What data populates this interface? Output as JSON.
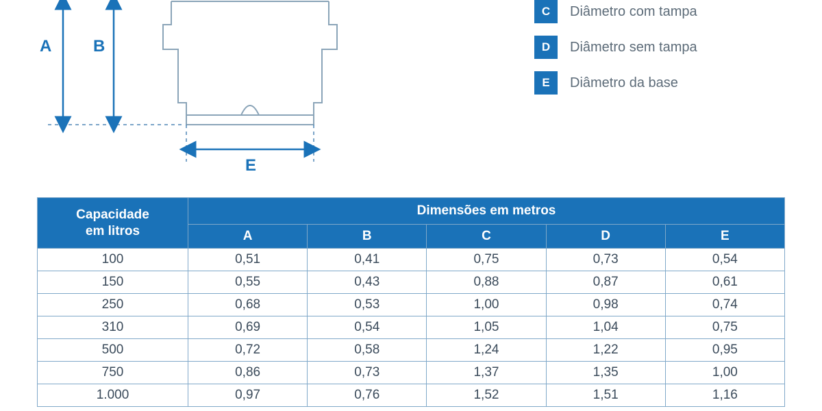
{
  "colors": {
    "header_bg": "#1a72b8",
    "border": "#7fa8c9",
    "legend_text": "#5c6b78",
    "dim_label": "#1a72b8",
    "arrow": "#1a72b8",
    "tank_line": "#8aa4b8",
    "dash": "#4e86b5"
  },
  "legend": [
    {
      "letter": "C",
      "label": "Diâmetro com tampa"
    },
    {
      "letter": "D",
      "label": "Diâmetro sem tampa"
    },
    {
      "letter": "E",
      "label": "Diâmetro da base"
    }
  ],
  "diagram_labels": {
    "A": "A",
    "B": "B",
    "E": "E"
  },
  "table": {
    "header_capacity_line1": "Capacidade",
    "header_capacity_line2": "em litros",
    "header_dims": "Dimensões em metros",
    "sub_headers": [
      "A",
      "B",
      "C",
      "D",
      "E"
    ],
    "rows": [
      {
        "cap": "100",
        "v": [
          "0,51",
          "0,41",
          "0,75",
          "0,73",
          "0,54"
        ]
      },
      {
        "cap": "150",
        "v": [
          "0,55",
          "0,43",
          "0,88",
          "0,87",
          "0,61"
        ]
      },
      {
        "cap": "250",
        "v": [
          "0,68",
          "0,53",
          "1,00",
          "0,98",
          "0,74"
        ]
      },
      {
        "cap": "310",
        "v": [
          "0,69",
          "0,54",
          "1,05",
          "1,04",
          "0,75"
        ]
      },
      {
        "cap": "500",
        "v": [
          "0,72",
          "0,58",
          "1,24",
          "1,22",
          "0,95"
        ]
      },
      {
        "cap": "750",
        "v": [
          "0,86",
          "0,73",
          "1,37",
          "1,35",
          "1,00"
        ]
      },
      {
        "cap": "1.000",
        "v": [
          "0,97",
          "0,76",
          "1,52",
          "1,51",
          "1,16"
        ]
      }
    ]
  }
}
